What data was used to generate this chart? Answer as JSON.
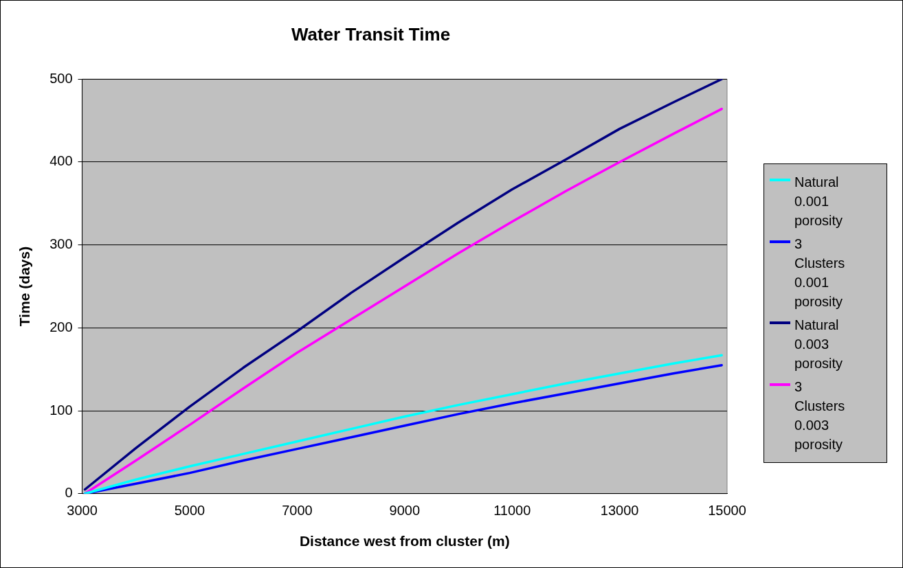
{
  "chart_data": {
    "type": "line",
    "title": "Water Transit Time",
    "xlabel": "Distance west from cluster (m)",
    "ylabel": "Time (days)",
    "x": [
      3050,
      4000,
      5000,
      6000,
      7000,
      8000,
      9000,
      10000,
      11000,
      12000,
      13000,
      14000,
      14900
    ],
    "xlim": [
      3000,
      15000
    ],
    "xticks": [
      3000,
      5000,
      7000,
      9000,
      11000,
      13000,
      15000
    ],
    "ylim": [
      0,
      500
    ],
    "yticks": [
      0,
      100,
      200,
      300,
      400,
      500
    ],
    "grid": "y",
    "legend": "right",
    "marker": "none",
    "line_style": "solid",
    "series": [
      {
        "name": "Natural 0.001 porosity",
        "color": "#00ffff",
        "values": [
          0,
          17,
          33,
          48,
          63,
          78,
          93,
          107,
          120,
          133,
          145,
          157,
          167
        ]
      },
      {
        "name": "3 Clusters 0.001 porosity",
        "color": "#0000ff",
        "values": [
          0,
          12,
          25,
          40,
          54,
          68,
          82,
          96,
          109,
          121,
          133,
          145,
          155
        ]
      },
      {
        "name": "Natural 0.003 porosity",
        "color": "#000080",
        "values": [
          5,
          55,
          105,
          152,
          196,
          242,
          285,
          327,
          367,
          403,
          440,
          472,
          500
        ]
      },
      {
        "name": "3 Clusters 0.003 porosity",
        "color": "#ff00ff",
        "values": [
          0,
          40,
          83,
          127,
          170,
          210,
          250,
          290,
          328,
          365,
          400,
          434,
          464
        ]
      }
    ]
  }
}
